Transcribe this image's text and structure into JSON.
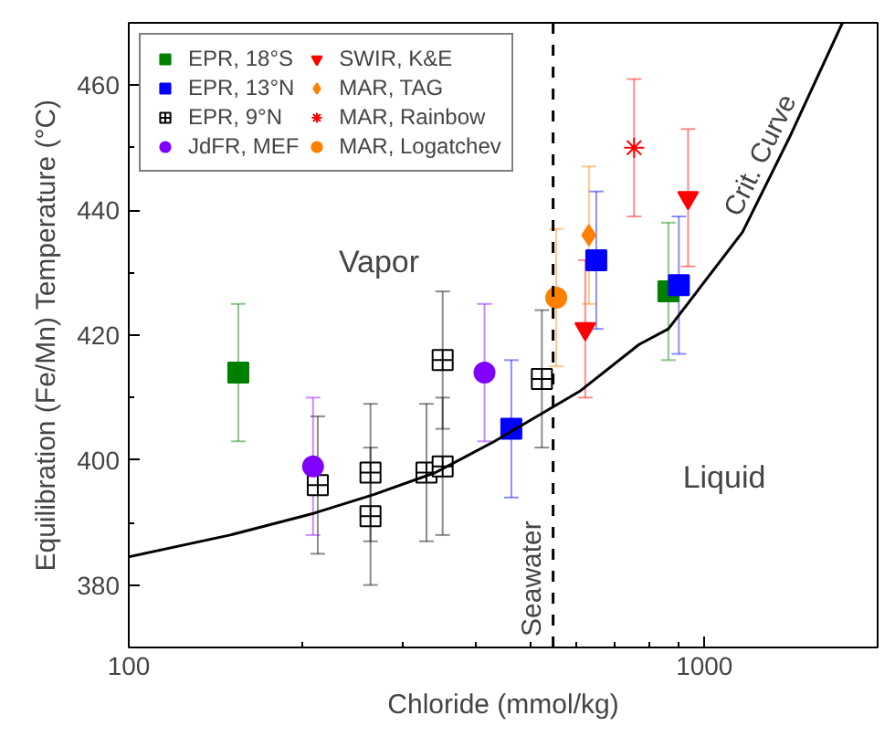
{
  "chart_data": {
    "type": "scatter",
    "xlabel": "Chloride (mmol/kg)",
    "ylabel": "Equilibration (Fe/Mn) Temperature (°C)",
    "log": "x",
    "xlim": [
      100,
      2000
    ],
    "xticks": [
      100,
      1000
    ],
    "ylim": [
      370,
      470
    ],
    "yticks": [
      380,
      400,
      420,
      440,
      460
    ],
    "grid": false,
    "legend": "top left",
    "series": [
      {
        "name": "EPR, 18°S",
        "color": "#008000",
        "marker": "square",
        "x": [
          155,
          866
        ],
        "values": [
          414,
          427
        ],
        "errors": [
          11,
          11
        ]
      },
      {
        "name": "EPR, 13°N",
        "color": "#0000ff",
        "marker": "square",
        "x": [
          462,
          649,
          903
        ],
        "values": [
          405,
          432,
          428
        ],
        "errors": [
          11,
          11,
          11
        ]
      },
      {
        "name": "EPR, 9°N",
        "color": "#000000",
        "marker": "cross",
        "x": [
          213,
          263,
          263,
          329,
          351,
          351,
          522
        ],
        "values": [
          396,
          398,
          391,
          398,
          399,
          416,
          413
        ],
        "errors": [
          11,
          11,
          11,
          11,
          11,
          11,
          11
        ]
      },
      {
        "name": "JdFR, MEF",
        "color": "#8000ff",
        "marker": "circle",
        "x": [
          209,
          415
        ],
        "values": [
          399,
          414
        ],
        "errors": [
          11,
          11
        ]
      },
      {
        "name": "SWIR, K&E",
        "color": "#ff0000",
        "marker": "triangle",
        "x": [
          621,
          937
        ],
        "values": [
          421,
          442
        ],
        "errors": [
          11,
          11
        ]
      },
      {
        "name": "MAR, TAG",
        "color": "#ff8000",
        "marker": "diamond",
        "x": [
          630
        ],
        "values": [
          436
        ],
        "errors": [
          11
        ]
      },
      {
        "name": "MAR, Rainbow",
        "color": "#ff0000",
        "marker": "cross",
        "x": [
          755
        ],
        "values": [
          450
        ],
        "errors": [
          11
        ]
      },
      {
        "name": "MAR, Logatchev",
        "color": "#ff8000",
        "marker": "circle",
        "x": [
          553
        ],
        "values": [
          426
        ],
        "errors": [
          11
        ]
      },
      {
        "name": "Crit. Curve",
        "type": "line",
        "color": "#000000",
        "marker": "none",
        "x": [
          100,
          150,
          210,
          267,
          341,
          432,
          607,
          770,
          866,
          1165,
          1403,
          1737
        ],
        "values": [
          384.5,
          388,
          391.5,
          394.5,
          398,
          403,
          411,
          418.5,
          421,
          436.5,
          451.5,
          470
        ]
      }
    ],
    "ref_lines": [
      {
        "axis": "x",
        "value": 546,
        "label": "Seawater",
        "color": "#000000",
        "line_style": "dashed"
      }
    ],
    "annotations": [
      "Vapor",
      "Liquid"
    ]
  }
}
